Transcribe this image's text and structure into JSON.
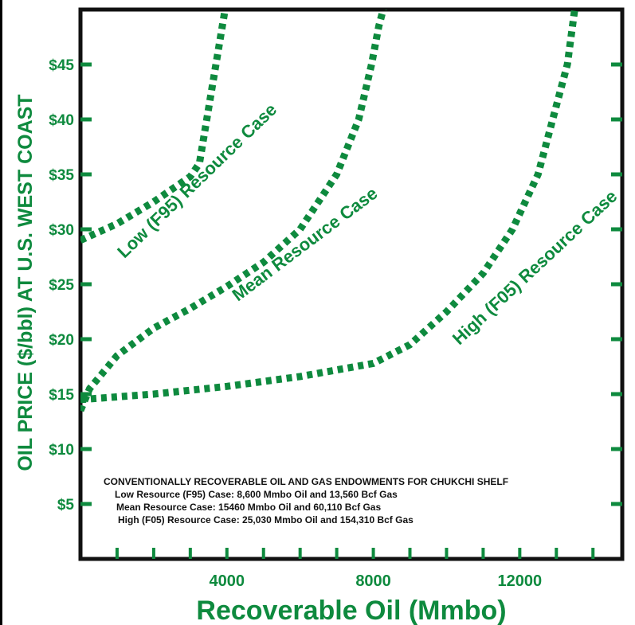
{
  "colors": {
    "accent": "#0e8a3e",
    "axis": "#111111",
    "text": "#111111",
    "background": "#ffffff"
  },
  "chart_data": {
    "type": "line",
    "title": "",
    "xlabel": "Recoverable Oil (Mmbo)",
    "ylabel": "OIL PRICE ($/bbl) AT U.S. WEST COAST",
    "xlim": [
      0,
      14800
    ],
    "ylim": [
      0,
      50
    ],
    "x_ticks": [
      4000,
      8000,
      12000
    ],
    "x_tick_labels": [
      "4000",
      "8000",
      "12000"
    ],
    "x_minor_ticks": [
      1000,
      2000,
      3000,
      5000,
      6000,
      7000,
      9000,
      10000,
      11000,
      13000,
      14000
    ],
    "y_ticks": [
      5,
      10,
      15,
      20,
      25,
      30,
      35,
      40,
      45
    ],
    "y_tick_labels": [
      "$5",
      "$10",
      "$15",
      "$20",
      "$25",
      "$30",
      "$35",
      "$40",
      "$45"
    ],
    "grid": false,
    "legend": "none",
    "series": [
      {
        "name": "Low (F95) Resource Case",
        "x": [
          0,
          1000,
          2000,
          3000,
          3250,
          3450,
          3700,
          3950,
          4050
        ],
        "y": [
          29.0,
          30.5,
          32.5,
          34.8,
          36.0,
          40.0,
          45.0,
          50.0,
          53.0
        ]
      },
      {
        "name": "Mean Resource Case",
        "x": [
          0,
          250,
          1000,
          2000,
          3000,
          4000,
          5000,
          6000,
          7000,
          7600,
          7950,
          8150,
          8350
        ],
        "y": [
          13.5,
          15.5,
          18.5,
          21.0,
          22.8,
          24.8,
          27.0,
          30.0,
          35.0,
          40.0,
          45.0,
          48.5,
          51.0
        ]
      },
      {
        "name": "High (F05) Resource Case",
        "x": [
          0,
          2000,
          4000,
          6000,
          8000,
          9000,
          10000,
          11000,
          11800,
          12500,
          12900,
          13300,
          13500
        ],
        "y": [
          14.5,
          15.0,
          15.7,
          16.6,
          17.8,
          19.5,
          22.5,
          26.0,
          30.0,
          35.0,
          40.0,
          45.0,
          50.0
        ]
      }
    ],
    "curve_labels": [
      "Low (F95) Resource Case",
      "Mean Resource Case",
      "High (F05) Resource Case"
    ],
    "annotation": {
      "heading": "CONVENTIONALLY RECOVERABLE OIL AND GAS ENDOWMENTS FOR CHUKCHI SHELF",
      "lines": [
        "Low Resource (F95) Case:  8,600 Mmbo Oil and 13,560 Bcf Gas",
        "Mean Resource Case: 15460 Mmbo Oil and 60,110 Bcf Gas",
        "High (F05) Resource Case: 25,030 Mmbo Oil and 154,310 Bcf Gas"
      ]
    }
  }
}
